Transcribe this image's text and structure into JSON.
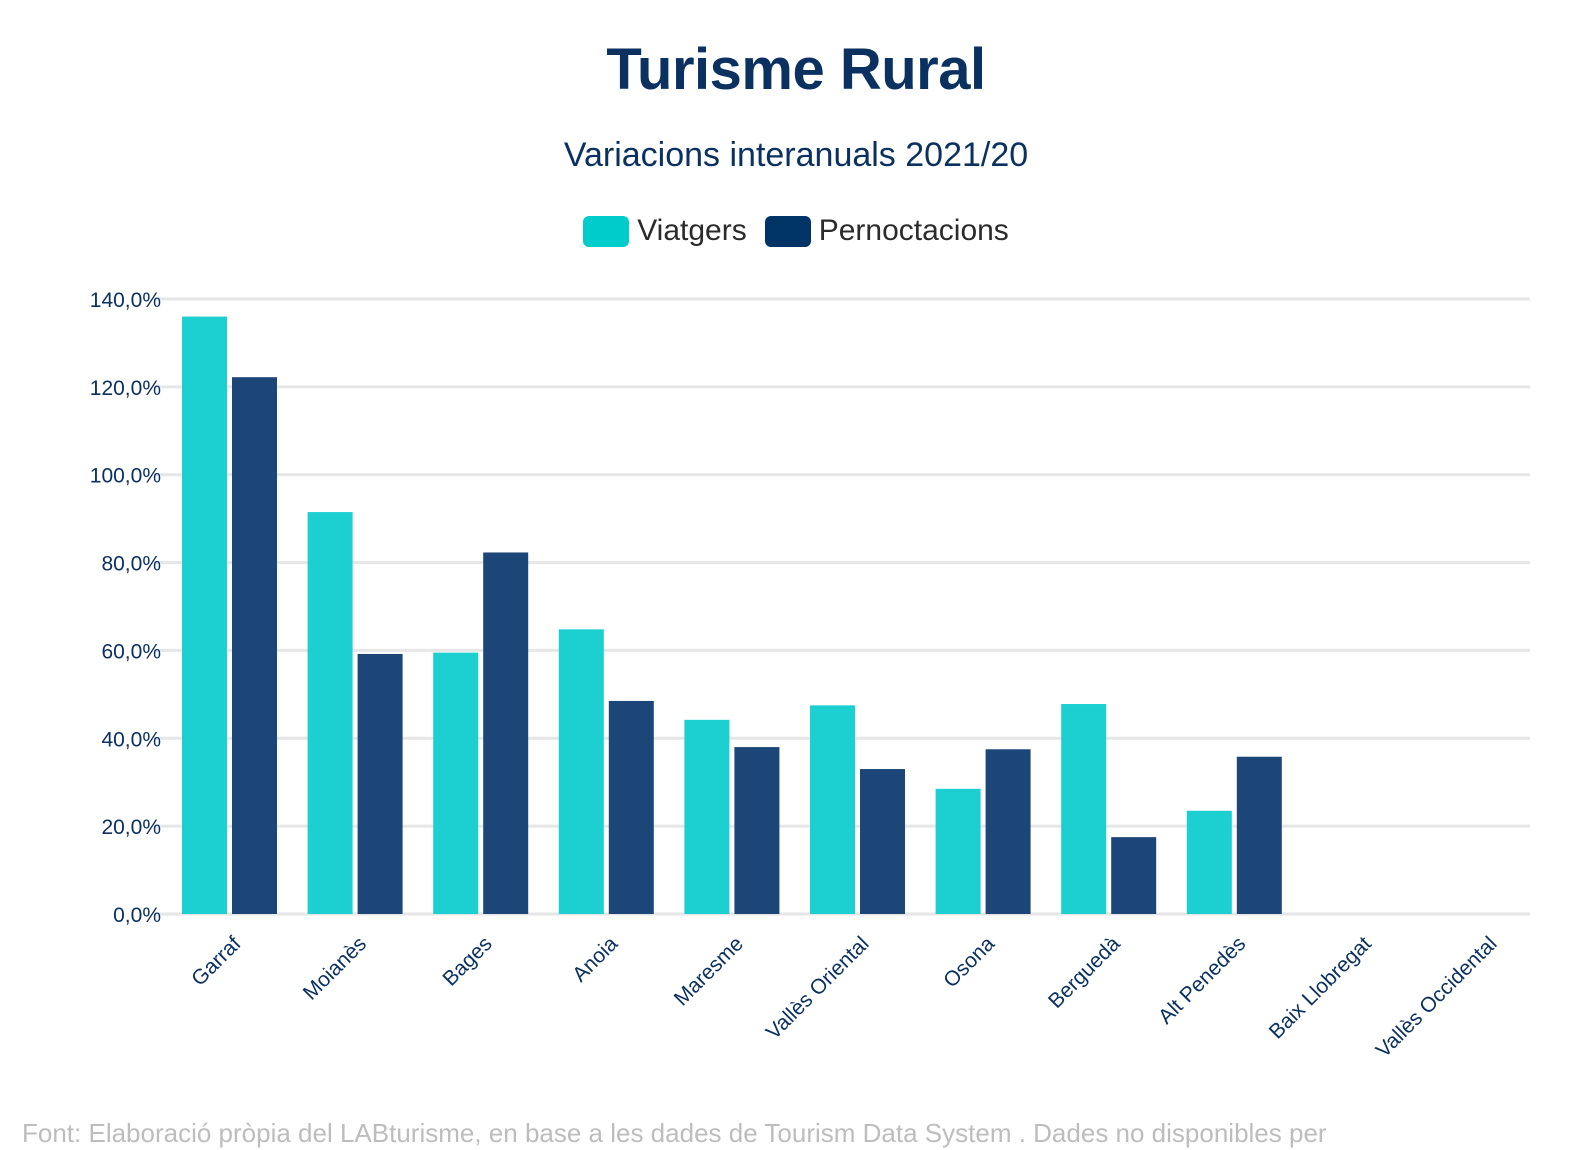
{
  "chart_data": {
    "type": "bar",
    "title": "Turisme Rural",
    "subtitle": "Variacions interanuals 2021/20",
    "categories": [
      "Garraf",
      "Moianès",
      "Bages",
      "Anoia",
      "Maresme",
      "Vallès Oriental",
      "Osona",
      "Berguedà",
      "Alt Penedès",
      "Baix Llobregat",
      "Vallès Occidental"
    ],
    "series": [
      {
        "name": "Viatgers",
        "color": "#1ccfd1",
        "values": [
          136.0,
          91.5,
          59.5,
          64.8,
          44.2,
          47.5,
          28.5,
          47.8,
          23.5,
          null,
          null
        ]
      },
      {
        "name": "Pernoctacions",
        "color": "#1c4677",
        "values": [
          122.2,
          59.2,
          82.3,
          48.5,
          38.0,
          33.0,
          37.5,
          17.5,
          35.8,
          null,
          null
        ]
      }
    ],
    "ylim": [
      0,
      140
    ],
    "yticks": [
      0,
      20,
      40,
      60,
      80,
      100,
      120,
      140
    ],
    "ytick_labels": [
      "0,0%",
      "20,0%",
      "40,0%",
      "60,0%",
      "80,0%",
      "100,0%",
      "120,0%",
      "140,0%"
    ],
    "xlabel": "",
    "ylabel": "",
    "grid": true,
    "legend_position": "top-center"
  },
  "legend": {
    "viatgers_label": "Viatgers",
    "pernoctacions_label": "Pernoctacions"
  },
  "footer": {
    "source_text": "Font: Elaboració pròpia del LABturisme, en base a les dades de Tourism Data System . Dades no disponibles per"
  },
  "colors": {
    "title": "#0b3161",
    "axis_text": "#0b3161",
    "gridline": "#e6e6e6"
  }
}
